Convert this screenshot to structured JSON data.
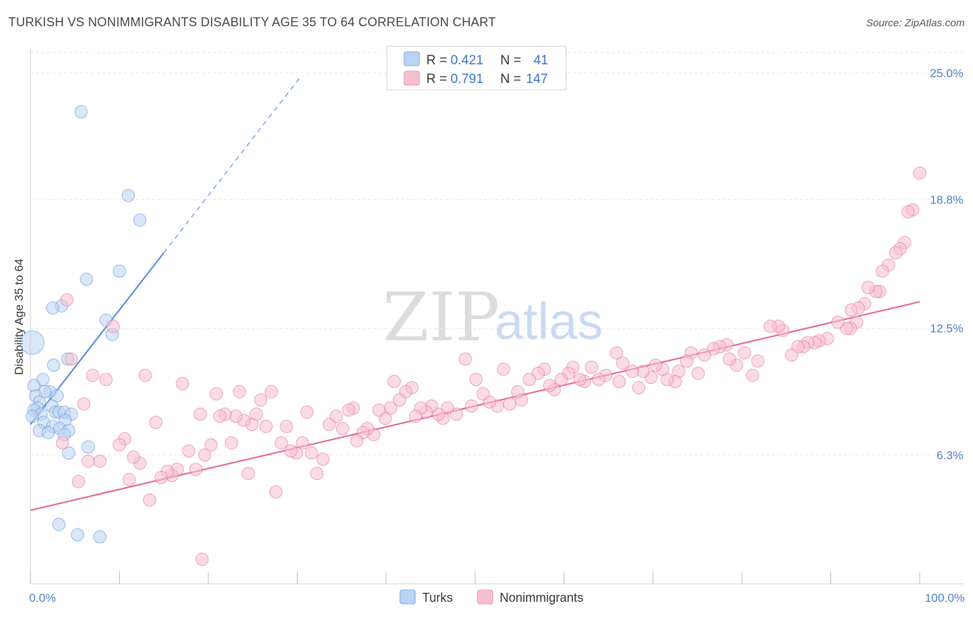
{
  "title": "TURKISH VS NONIMMIGRANTS DISABILITY AGE 35 TO 64 CORRELATION CHART",
  "source": "Source: ZipAtlas.com",
  "watermark": {
    "zip": "ZIP",
    "atlas": "atlas"
  },
  "chart_data": {
    "type": "scatter",
    "ylabel": "Disability Age 35 to 64",
    "xlim": [
      0,
      100
    ],
    "ylim": [
      0,
      26.2
    ],
    "x_tick_labels": [
      {
        "value": 0,
        "label": "0.0%"
      },
      {
        "value": 100,
        "label": "100.0%"
      }
    ],
    "y_ticks": [
      {
        "value": 6.3,
        "label": "6.3%"
      },
      {
        "value": 12.5,
        "label": "12.5%"
      },
      {
        "value": 18.8,
        "label": "18.8%"
      },
      {
        "value": 25.0,
        "label": "25.0%"
      }
    ],
    "legend": {
      "rows": [
        {
          "r_label": "R =",
          "r_value": "0.421",
          "n_label": "N =",
          "n_value": "41"
        },
        {
          "r_label": "R =",
          "r_value": "0.791",
          "n_label": "N =",
          "n_value": "147"
        }
      ]
    },
    "series": [
      {
        "name": "Turks",
        "color": "#5b8fd9",
        "fill": "#b9d3f3",
        "trend": {
          "x0": 0,
          "y0": 7.8,
          "x1": 15,
          "y1": 16.2,
          "dash_to_x": 30.5
        },
        "points": [
          [
            5.7,
            23.1
          ],
          [
            11,
            19
          ],
          [
            12.3,
            17.8
          ],
          [
            10,
            15.3
          ],
          [
            6.3,
            14.9
          ],
          [
            3.5,
            13.6
          ],
          [
            2.5,
            13.5
          ],
          [
            8.5,
            12.9
          ],
          [
            9.2,
            12.2
          ],
          [
            0.2,
            11.8
          ],
          [
            4.2,
            11
          ],
          [
            2.6,
            10.7
          ],
          [
            1.4,
            10
          ],
          [
            0.4,
            9.7
          ],
          [
            2.2,
            9.4
          ],
          [
            1.6,
            9.4
          ],
          [
            0.6,
            9.2
          ],
          [
            3,
            9.2
          ],
          [
            1,
            8.9
          ],
          [
            2.4,
            8.7
          ],
          [
            0.8,
            8.6
          ],
          [
            0.4,
            8.5
          ],
          [
            2.8,
            8.4
          ],
          [
            3.2,
            8.4
          ],
          [
            3.8,
            8.4
          ],
          [
            1.2,
            8.3
          ],
          [
            4.6,
            8.3
          ],
          [
            0.2,
            8.2
          ],
          [
            3.9,
            8
          ],
          [
            1.5,
            7.9
          ],
          [
            2.5,
            7.7
          ],
          [
            3.3,
            7.6
          ],
          [
            1,
            7.5
          ],
          [
            4.3,
            7.5
          ],
          [
            2,
            7.4
          ],
          [
            3.8,
            7.3
          ],
          [
            6.5,
            6.7
          ],
          [
            4.3,
            6.4
          ],
          [
            3.2,
            2.9
          ],
          [
            5.3,
            2.4
          ],
          [
            7.8,
            2.3
          ]
        ]
      },
      {
        "name": "Nonimmigrants",
        "color": "#e36b96",
        "fill": "#f7bfd0",
        "trend": {
          "x0": 0,
          "y0": 3.6,
          "x1": 100,
          "y1": 13.8
        },
        "points": [
          [
            100,
            20.1
          ],
          [
            99.2,
            18.3
          ],
          [
            98.7,
            18.2
          ],
          [
            98.3,
            16.7
          ],
          [
            97.8,
            16.4
          ],
          [
            97.3,
            16.2
          ],
          [
            96.5,
            15.6
          ],
          [
            95.8,
            15.3
          ],
          [
            95.5,
            14.3
          ],
          [
            95.1,
            14.3
          ],
          [
            94.2,
            14.5
          ],
          [
            93.8,
            13.7
          ],
          [
            93.1,
            13.5
          ],
          [
            92.3,
            13.4
          ],
          [
            92.9,
            12.8
          ],
          [
            92.2,
            12.5
          ],
          [
            91.8,
            12.5
          ],
          [
            90.8,
            12.8
          ],
          [
            89.6,
            12.0
          ],
          [
            88.7,
            11.9
          ],
          [
            88.2,
            11.8
          ],
          [
            87.4,
            11.8
          ],
          [
            86.9,
            11.6
          ],
          [
            86.3,
            11.6
          ],
          [
            85.6,
            11.2
          ],
          [
            84.6,
            12.4
          ],
          [
            84.1,
            12.6
          ],
          [
            83.2,
            12.6
          ],
          [
            81.8,
            10.9
          ],
          [
            81.2,
            10.2
          ],
          [
            80.3,
            11.3
          ],
          [
            79.4,
            10.7
          ],
          [
            78.6,
            11.0
          ],
          [
            78.3,
            11.7
          ],
          [
            77.5,
            11.6
          ],
          [
            76.8,
            11.5
          ],
          [
            75.8,
            11.2
          ],
          [
            75.1,
            10.3
          ],
          [
            74.3,
            11.3
          ],
          [
            73.8,
            10.9
          ],
          [
            72.9,
            10.4
          ],
          [
            72.5,
            9.9
          ],
          [
            71.6,
            10.0
          ],
          [
            71.1,
            10.5
          ],
          [
            70.3,
            10.7
          ],
          [
            69.8,
            10.1
          ],
          [
            68.9,
            10.4
          ],
          [
            68.4,
            9.6
          ],
          [
            67.7,
            10.4
          ],
          [
            66.6,
            10.8
          ],
          [
            66.2,
            9.9
          ],
          [
            65.9,
            11.3
          ],
          [
            64.7,
            10.2
          ],
          [
            63.9,
            10.0
          ],
          [
            63.1,
            10.6
          ],
          [
            62.3,
            9.9
          ],
          [
            61.8,
            10.0
          ],
          [
            61.0,
            10.6
          ],
          [
            60.5,
            10.3
          ],
          [
            59.7,
            10.0
          ],
          [
            58.9,
            9.5
          ],
          [
            58.4,
            9.7
          ],
          [
            57.8,
            10.5
          ],
          [
            57.1,
            10.3
          ],
          [
            56.1,
            10.0
          ],
          [
            55.2,
            9.0
          ],
          [
            54.8,
            9.4
          ],
          [
            53.9,
            8.8
          ],
          [
            53.2,
            10.5
          ],
          [
            52.5,
            8.7
          ],
          [
            51.6,
            8.9
          ],
          [
            50.9,
            9.3
          ],
          [
            50.1,
            10.0
          ],
          [
            49.6,
            8.7
          ],
          [
            48.9,
            11.0
          ],
          [
            47.9,
            8.3
          ],
          [
            46.9,
            8.6
          ],
          [
            46.4,
            8.1
          ],
          [
            45.9,
            8.3
          ],
          [
            45.1,
            8.7
          ],
          [
            44.5,
            8.4
          ],
          [
            43.9,
            8.6
          ],
          [
            43.3,
            8.2
          ],
          [
            42.9,
            9.6
          ],
          [
            42.2,
            9.4
          ],
          [
            41.5,
            9.0
          ],
          [
            40.9,
            9.9
          ],
          [
            40.5,
            8.6
          ],
          [
            39.9,
            8.1
          ],
          [
            39.2,
            8.5
          ],
          [
            38.6,
            7.3
          ],
          [
            37.9,
            7.6
          ],
          [
            37.4,
            7.4
          ],
          [
            36.7,
            7.0
          ],
          [
            36.3,
            8.6
          ],
          [
            35.8,
            8.5
          ],
          [
            35.1,
            7.6
          ],
          [
            34.4,
            8.2
          ],
          [
            33.6,
            7.8
          ],
          [
            32.9,
            6.1
          ],
          [
            32.2,
            5.4
          ],
          [
            31.6,
            6.4
          ],
          [
            31.1,
            8.4
          ],
          [
            30.6,
            6.9
          ],
          [
            29.9,
            6.4
          ],
          [
            29.3,
            6.5
          ],
          [
            28.8,
            7.7
          ],
          [
            28.2,
            6.9
          ],
          [
            27.6,
            4.5
          ],
          [
            27.1,
            9.4
          ],
          [
            26.5,
            7.7
          ],
          [
            25.9,
            9.0
          ],
          [
            25.4,
            8.3
          ],
          [
            24.9,
            7.8
          ],
          [
            24.5,
            5.4
          ],
          [
            24.0,
            8.0
          ],
          [
            23.5,
            9.4
          ],
          [
            23.1,
            8.2
          ],
          [
            22.6,
            6.9
          ],
          [
            21.9,
            8.3
          ],
          [
            21.3,
            8.2
          ],
          [
            20.9,
            9.3
          ],
          [
            20.3,
            6.8
          ],
          [
            19.6,
            6.3
          ],
          [
            19.1,
            8.3
          ],
          [
            18.6,
            5.6
          ],
          [
            17.8,
            6.5
          ],
          [
            17.1,
            9.8
          ],
          [
            16.5,
            5.6
          ],
          [
            15.9,
            5.3
          ],
          [
            15.4,
            5.5
          ],
          [
            14.7,
            5.2
          ],
          [
            14.1,
            7.9
          ],
          [
            13.4,
            4.1
          ],
          [
            12.9,
            10.2
          ],
          [
            12.3,
            5.9
          ],
          [
            11.6,
            6.2
          ],
          [
            11.1,
            5.1
          ],
          [
            10.6,
            7.1
          ],
          [
            10.0,
            6.8
          ],
          [
            9.3,
            12.6
          ],
          [
            8.5,
            10.0
          ],
          [
            7.8,
            6.0
          ],
          [
            7.0,
            10.2
          ],
          [
            6.5,
            6.0
          ],
          [
            6.0,
            8.8
          ],
          [
            5.4,
            5.0
          ],
          [
            4.6,
            11.0
          ],
          [
            4.1,
            13.9
          ],
          [
            3.6,
            6.9
          ],
          [
            19.3,
            1.2
          ]
        ]
      }
    ]
  }
}
